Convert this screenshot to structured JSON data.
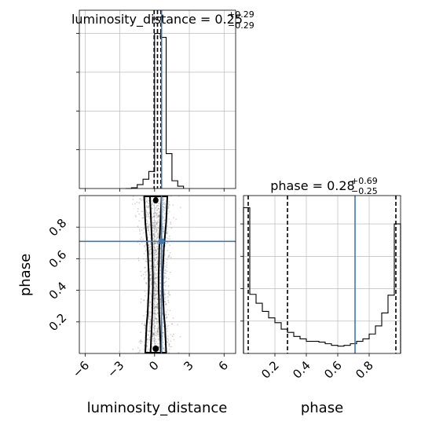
{
  "chart_data": {
    "type": "corner",
    "parameters": [
      "luminosity_distance",
      "phase"
    ],
    "titles": {
      "luminosity_distance": {
        "name": "luminosity_distance",
        "median": "0.25",
        "plus": "+0.29",
        "minus": "−0.29"
      },
      "phase": {
        "name": "phase",
        "median": "0.28",
        "plus": "+0.69",
        "minus": "−0.25"
      }
    },
    "axis_labels": {
      "x_left": "luminosity_distance",
      "x_right": "phase",
      "y_left": "phase"
    },
    "luminosity_distance_axis": {
      "range": [
        -6.5,
        7
      ],
      "ticks": [
        -6,
        -3,
        0,
        3,
        6
      ],
      "tick_labels": [
        "−6",
        "−3",
        "0",
        "3",
        "6"
      ]
    },
    "phase_axis": {
      "range": [
        0,
        1
      ],
      "ticks": [
        0.2,
        0.4,
        0.6,
        0.8
      ],
      "tick_labels": [
        "0.2",
        "0.4",
        "0.6",
        "0.8"
      ]
    },
    "truth": {
      "luminosity_distance": 0.6,
      "phase": 0.71,
      "color": "#4477aa"
    },
    "quantiles": {
      "luminosity_distance": [
        -0.04,
        0.25,
        0.54
      ],
      "phase": [
        0.03,
        0.28,
        0.97
      ]
    },
    "hist_luminosity_distance": {
      "bin_edges": [
        -2.5,
        -2.0,
        -1.5,
        -1.0,
        -0.5,
        0.0,
        0.5,
        1.0,
        1.5,
        2.0,
        2.5
      ],
      "counts": [
        0,
        1,
        5,
        12,
        22,
        200,
        195,
        45,
        10,
        3
      ],
      "ylim": [
        0,
        230
      ]
    },
    "hist_phase": {
      "bin_edges": [
        0.0,
        0.04,
        0.08,
        0.12,
        0.16,
        0.2,
        0.24,
        0.28,
        0.32,
        0.36,
        0.4,
        0.44,
        0.48,
        0.52,
        0.56,
        0.6,
        0.64,
        0.68,
        0.72,
        0.76,
        0.8,
        0.84,
        0.88,
        0.92,
        0.96,
        1.0
      ],
      "counts": [
        180,
        73,
        62,
        52,
        44,
        38,
        30,
        26,
        21,
        18,
        15,
        15,
        14,
        12,
        10,
        9,
        10,
        12,
        15,
        18,
        24,
        34,
        50,
        72,
        160
      ],
      "ylim": [
        0,
        195
      ]
    },
    "contour_2d": {
      "outer_width": [
        0.9,
        0.85,
        0.8,
        0.7,
        0.65,
        0.6,
        0.6,
        0.65,
        0.7,
        0.8,
        0.9,
        0.95,
        1.0
      ],
      "inner_width": [
        0.45,
        0.4,
        0.35,
        0.3,
        0.28,
        0.25,
        0.25,
        0.28,
        0.3,
        0.35,
        0.4,
        0.45,
        0.5
      ],
      "center_ld": 0.1
    },
    "colors": {
      "truth": "#4477aa",
      "hist": "#000000",
      "grid": "#b0b0b0",
      "scatter": "#888888"
    }
  }
}
